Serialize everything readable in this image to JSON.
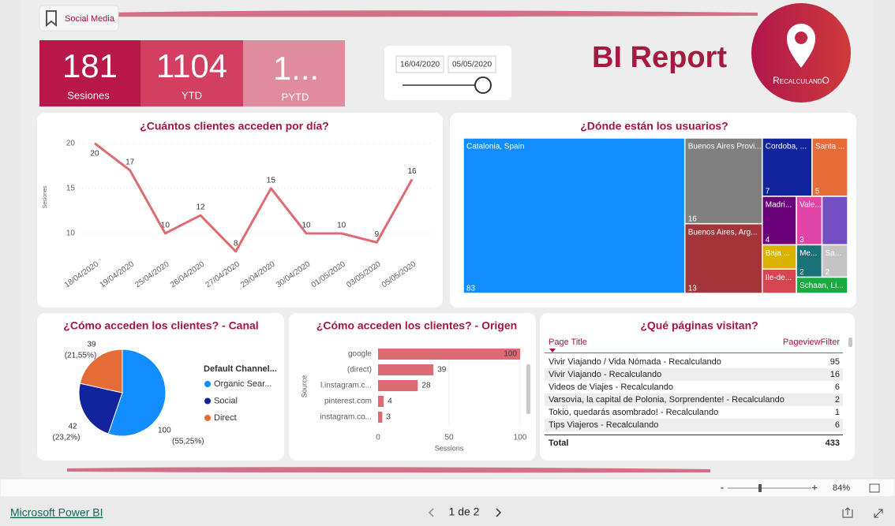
{
  "bookmark": "Social Media",
  "kpis": [
    {
      "value": 181,
      "label": "Sesiones"
    },
    {
      "value": 1104,
      "label": "YTD"
    },
    {
      "value": "1...",
      "label": "PYTD"
    }
  ],
  "date_slicer": {
    "start": "16/04/2020",
    "end": "05/05/2020"
  },
  "header": {
    "title": "BI Report",
    "logo": "RecalculandO"
  },
  "chart_data": [
    {
      "type": "line",
      "title": "¿Cuántos clientes acceden por día?",
      "y_label": "Sesiones",
      "categories": [
        "18/04/2020",
        "19/04/2020",
        "25/04/2020",
        "26/04/2020",
        "27/04/2020",
        "29/04/2020",
        "30/04/2020",
        "01/05/2020",
        "03/05/2020",
        "05/05/2020"
      ],
      "values": [
        20,
        17,
        10,
        12,
        8,
        15,
        10,
        10,
        9,
        16
      ],
      "color": "#dd6b74",
      "ylim": [
        7.5,
        20.5
      ],
      "yticks": [
        10,
        15,
        20
      ],
      "grid": true
    },
    {
      "type": "treemap",
      "title": "¿Dónde están los usuarios?",
      "categories": [
        "Catalonia, Spain",
        "Buenos Aires Provi...",
        "Buenos Aires, Arg...",
        "Cordoba, ...",
        "Santa ...",
        "Madri...",
        "Vale...",
        null,
        "Baja ...",
        "Me...",
        "Sa...",
        "Ile-de...",
        "Schaan, Li..."
      ],
      "values": [
        83,
        16,
        13,
        7,
        5,
        4,
        3,
        3,
        2,
        2,
        2,
        2,
        2
      ],
      "value_labels": [
        "83",
        "16",
        "13",
        "7",
        "5",
        "4",
        "3",
        null,
        null,
        "2",
        "2",
        null,
        null
      ],
      "colors": [
        "#118dff",
        "#808080",
        "#a4343a",
        "#12239e",
        "#e66c37",
        "#6b007b",
        "#e044a7",
        "#744ec2",
        "#d9b300",
        "#197278",
        "#c4c4c4",
        "#d64550",
        "#1aab40"
      ]
    },
    {
      "type": "pie",
      "title": "¿Cómo acceden los clientes? - Canal",
      "legend_title": "Default Channel...",
      "categories": [
        "Organic Sear...",
        "Social",
        "Direct"
      ],
      "values": [
        100,
        42,
        39
      ],
      "percent_labels": [
        "(55,25%)",
        "(23,2%)",
        "(21,55%)"
      ],
      "colors": [
        "#118dff",
        "#12239e",
        "#e66c37"
      ]
    },
    {
      "type": "bar",
      "title": "¿Cómo acceden los clientes? - Origen",
      "x_label": "Sessions",
      "y_label": "Source",
      "categories": [
        "google",
        "(direct)",
        "l.instagram.c...",
        "pinterest.com",
        "instagram.co..."
      ],
      "values": [
        100,
        39,
        28,
        4,
        3
      ],
      "color": "#dd6b74",
      "xlim": [
        0,
        100
      ],
      "xticks": [
        0,
        50,
        100
      ]
    }
  ],
  "table": {
    "title": "¿Qué páginas visitan?",
    "columns": [
      "Page Title",
      "PageviewFilter"
    ],
    "rows": [
      [
        "Vivir Viajando / Vida Nómada - Recalculando",
        95
      ],
      [
        "Vivir Viajando - Recalculando",
        16
      ],
      [
        "Videos de Viajes - Recalculando",
        6
      ],
      [
        "Varsovia, la capital de Polonia, Sorprendente! - Recalculando",
        2
      ],
      [
        "Tokio, quedarás asombrado! - Recalculando",
        1
      ],
      [
        "Tips Viajeros - Recalculando",
        6
      ]
    ],
    "total": [
      "Total",
      433
    ]
  },
  "footer": {
    "brand": "Microsoft Power BI",
    "page": "1 de 2",
    "zoom": "84%"
  }
}
